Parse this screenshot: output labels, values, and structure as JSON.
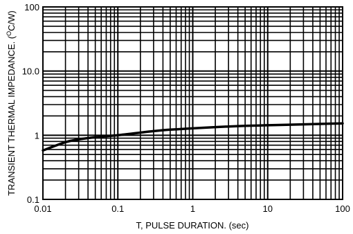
{
  "chart_data": {
    "type": "line",
    "title": "",
    "xlabel": "T, PULSE DURATION. (sec)",
    "ylabel_prefix": "TRANSIENT THERMAL IMPEDANCE. (",
    "ylabel_sup": "O",
    "ylabel_suffix": "C/W)",
    "x_scale": "log",
    "y_scale": "log",
    "xlim": [
      0.01,
      100
    ],
    "ylim": [
      0.1,
      100
    ],
    "grid": true,
    "x_ticks": [
      {
        "value": 0.01,
        "label": "0.01"
      },
      {
        "value": 0.1,
        "label": "0.1"
      },
      {
        "value": 1,
        "label": "1"
      },
      {
        "value": 10,
        "label": "10"
      },
      {
        "value": 100,
        "label": "100"
      }
    ],
    "y_ticks": [
      {
        "value": 0.1,
        "label": "0.1"
      },
      {
        "value": 1,
        "label": "1"
      },
      {
        "value": 10,
        "label": "10.0"
      },
      {
        "value": 100,
        "label": "100"
      }
    ],
    "series": [
      {
        "x": [
          0.01,
          0.02,
          0.03,
          0.05,
          0.1,
          0.2,
          0.3,
          0.5,
          1,
          2,
          3,
          5,
          10,
          20,
          30,
          50,
          100
        ],
        "y": [
          0.58,
          0.78,
          0.86,
          0.93,
          1.0,
          1.1,
          1.16,
          1.22,
          1.28,
          1.34,
          1.37,
          1.4,
          1.43,
          1.46,
          1.48,
          1.5,
          1.53
        ]
      }
    ],
    "colors": {
      "line": "#000000",
      "grid": "#000000",
      "background": "#ffffff"
    }
  }
}
